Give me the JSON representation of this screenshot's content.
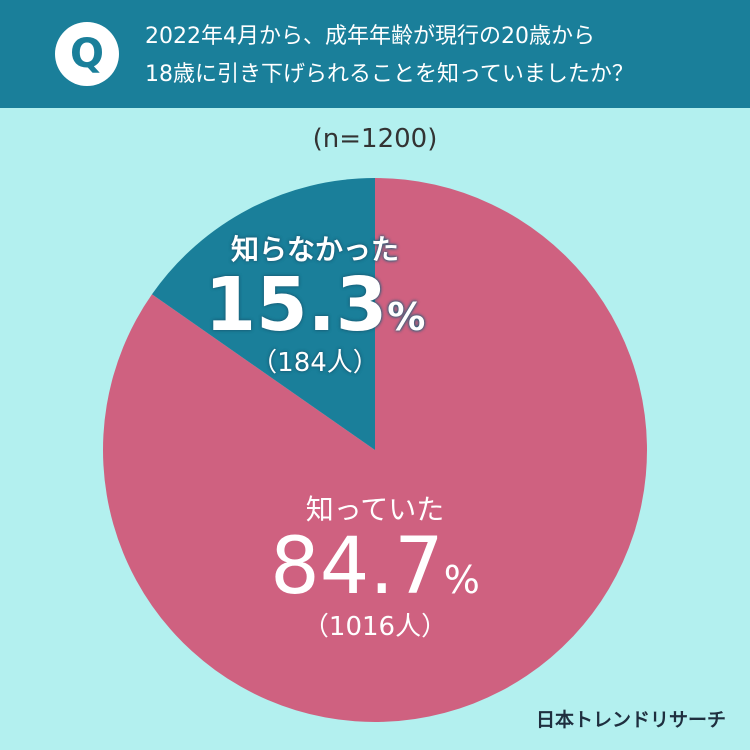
{
  "header": {
    "badge": "Q",
    "question_line1": "2022年4月から、成年年齢が現行の20歳から",
    "question_line2": "18歳に引き下げられることを知っていましたか？"
  },
  "sample_size": "(n=1200)",
  "brand": "日本トレンドリサーチ",
  "chart_data": {
    "type": "pie",
    "title": "",
    "series": [
      {
        "name": "知っていた",
        "percent": 84.7,
        "count": 1016,
        "count_label": "（1016人）",
        "color": "#cf6180"
      },
      {
        "name": "知らなかった",
        "percent": 15.3,
        "count": 184,
        "count_label": "（184人）",
        "color": "#1a7f9a"
      }
    ]
  },
  "colors": {
    "background": "#b3f0ef",
    "header": "#1a7f9a",
    "known": "#cf6180",
    "unknown": "#1a7f9a"
  }
}
